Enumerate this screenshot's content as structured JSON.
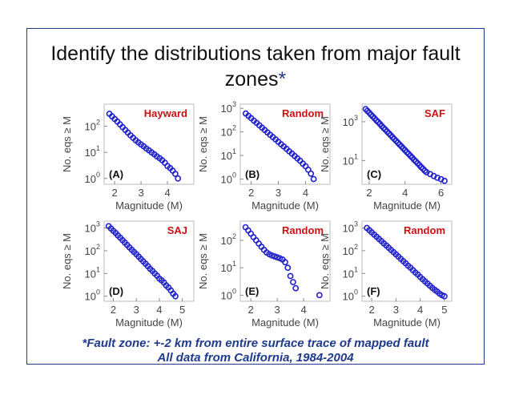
{
  "slide": {
    "title_main": "Identify the distributions taken from major fault zones",
    "title_asterisk": "*",
    "footnote_line1": "*Fault zone: +-2 km from entire surface trace of mapped fault",
    "footnote_line2": "All data from California, 1984-2004",
    "colors": {
      "frame": "#1f3a8c",
      "points": "#2222cc",
      "label_red": "#cc1111",
      "footnote": "#1f3a8c"
    }
  },
  "chart_data": [
    {
      "type": "scatter",
      "panel_label": "(A)",
      "annotation": "Hayward",
      "xlabel": "Magnitude (M)",
      "ylabel": "No. eqs ≥ M",
      "xlim": [
        1.6,
        5.0
      ],
      "xticks": [
        2,
        3,
        4
      ],
      "ylog": true,
      "ylim": [
        0.6,
        700
      ],
      "yticks": [
        1,
        10,
        100
      ],
      "ytick_labels": [
        [
          "10",
          "0"
        ],
        [
          "10",
          "1"
        ],
        [
          "10",
          "2"
        ]
      ],
      "x": [
        1.8,
        1.9,
        2.0,
        2.1,
        2.2,
        2.3,
        2.4,
        2.5,
        2.6,
        2.7,
        2.8,
        2.9,
        3.0,
        3.1,
        3.2,
        3.3,
        3.4,
        3.5,
        3.6,
        3.7,
        3.8,
        3.9,
        4.0,
        4.1,
        4.2,
        4.3,
        4.4
      ],
      "y": [
        300,
        240,
        190,
        150,
        118,
        92,
        72,
        57,
        45,
        36,
        29,
        24,
        20,
        17,
        14,
        12,
        10,
        8.5,
        7,
        6,
        5,
        4,
        3,
        2.5,
        2,
        1.5,
        1
      ]
    },
    {
      "type": "scatter",
      "panel_label": "(B)",
      "annotation": "Random",
      "xlabel": "Magnitude (M)",
      "ylabel": "No. eqs ≥ M",
      "xlim": [
        1.6,
        4.9
      ],
      "xticks": [
        2,
        3,
        4
      ],
      "ylog": true,
      "ylim": [
        0.6,
        1500
      ],
      "yticks": [
        1,
        10,
        100,
        1000
      ],
      "ytick_labels": [
        [
          "10",
          "0"
        ],
        [
          "10",
          "1"
        ],
        [
          "10",
          "2"
        ],
        [
          "10",
          "3"
        ]
      ],
      "x": [
        1.8,
        1.9,
        2.0,
        2.1,
        2.2,
        2.3,
        2.4,
        2.5,
        2.6,
        2.7,
        2.8,
        2.9,
        3.0,
        3.1,
        3.2,
        3.3,
        3.4,
        3.5,
        3.6,
        3.7,
        3.8,
        3.9,
        4.0,
        4.1,
        4.2,
        4.3
      ],
      "y": [
        600,
        480,
        380,
        300,
        240,
        190,
        150,
        120,
        95,
        75,
        60,
        48,
        38,
        30,
        24,
        19,
        15,
        12,
        9.5,
        7.5,
        6,
        4.5,
        3.5,
        2.5,
        1.7,
        1
      ]
    },
    {
      "type": "scatter",
      "panel_label": "(C)",
      "annotation": "SAF",
      "xlabel": "Magnitude (M)",
      "ylabel": "No. eqs ≥ M",
      "xlim": [
        1.6,
        6.6
      ],
      "xticks": [
        2,
        4,
        6
      ],
      "ylog": true,
      "ylim": [
        0.6,
        8000
      ],
      "yticks": [
        10,
        1000
      ],
      "ytick_labels": [
        [
          "10",
          "1"
        ],
        [
          "10",
          "3"
        ]
      ],
      "x": [
        1.8,
        1.9,
        2.0,
        2.1,
        2.2,
        2.3,
        2.4,
        2.5,
        2.6,
        2.7,
        2.8,
        2.9,
        3.0,
        3.1,
        3.2,
        3.3,
        3.4,
        3.5,
        3.6,
        3.7,
        3.8,
        3.9,
        4.0,
        4.1,
        4.2,
        4.3,
        4.4,
        4.5,
        4.6,
        4.7,
        4.8,
        4.9,
        5.0,
        5.1,
        5.2,
        5.4,
        5.6,
        5.8,
        6.0,
        6.2
      ],
      "y": [
        4500,
        3600,
        2900,
        2300,
        1850,
        1480,
        1180,
        950,
        760,
        600,
        480,
        390,
        310,
        250,
        200,
        160,
        128,
        102,
        82,
        66,
        53,
        42,
        34,
        27,
        22,
        17.5,
        14,
        11,
        9,
        7.2,
        5.8,
        4.6,
        3.7,
        3,
        2.5,
        2,
        1.6,
        1.3,
        1.1,
        0.9
      ]
    },
    {
      "type": "scatter",
      "panel_label": "(D)",
      "annotation": "SAJ",
      "xlabel": "Magnitude (M)",
      "ylabel": "No. eqs ≥ M",
      "xlim": [
        1.6,
        5.5
      ],
      "xticks": [
        2,
        3,
        4,
        5
      ],
      "ylog": true,
      "ylim": [
        0.6,
        2000
      ],
      "yticks": [
        1,
        10,
        100,
        1000
      ],
      "ytick_labels": [
        [
          "10",
          "0"
        ],
        [
          "10",
          "1"
        ],
        [
          "10",
          "2"
        ],
        [
          "10",
          "3"
        ]
      ],
      "x": [
        1.8,
        1.9,
        2.0,
        2.1,
        2.2,
        2.3,
        2.4,
        2.5,
        2.6,
        2.7,
        2.8,
        2.9,
        3.0,
        3.1,
        3.2,
        3.3,
        3.4,
        3.5,
        3.6,
        3.7,
        3.8,
        3.9,
        4.0,
        4.1,
        4.2,
        4.3,
        4.4,
        4.5,
        4.6,
        4.7
      ],
      "y": [
        1200,
        950,
        750,
        600,
        470,
        370,
        290,
        230,
        180,
        140,
        110,
        88,
        70,
        55,
        43,
        34,
        27,
        21,
        16,
        13,
        10,
        8,
        6,
        5,
        4,
        3,
        2.4,
        1.8,
        1.3,
        1
      ]
    },
    {
      "type": "scatter",
      "panel_label": "(E)",
      "annotation": "Random",
      "xlabel": "Magnitude (M)",
      "ylabel": "No. eqs ≥ M",
      "xlim": [
        1.6,
        5.0
      ],
      "xticks": [
        2,
        3,
        4
      ],
      "ylog": true,
      "ylim": [
        0.6,
        500
      ],
      "yticks": [
        1,
        10,
        100
      ],
      "ytick_labels": [
        [
          "10",
          "0"
        ],
        [
          "10",
          "1"
        ],
        [
          "10",
          "2"
        ]
      ],
      "x": [
        1.8,
        1.9,
        2.0,
        2.1,
        2.2,
        2.3,
        2.4,
        2.5,
        2.6,
        2.7,
        2.8,
        2.9,
        3.0,
        3.1,
        3.2,
        3.3,
        3.4,
        3.5,
        3.6,
        3.7,
        4.6
      ],
      "y": [
        300,
        230,
        175,
        130,
        100,
        76,
        58,
        45,
        36,
        31,
        28,
        26,
        24,
        22,
        20,
        16,
        10,
        5,
        3,
        1.8,
        1
      ]
    },
    {
      "type": "scatter",
      "panel_label": "(F)",
      "annotation": "Random",
      "xlabel": "Magnitude (M)",
      "ylabel": "No. eqs ≥ M",
      "xlim": [
        1.6,
        5.3
      ],
      "xticks": [
        2,
        3,
        4,
        5
      ],
      "ylog": true,
      "ylim": [
        0.6,
        2000
      ],
      "yticks": [
        1,
        10,
        100,
        1000
      ],
      "ytick_labels": [
        [
          "10",
          "0"
        ],
        [
          "10",
          "1"
        ],
        [
          "10",
          "2"
        ],
        [
          "10",
          "3"
        ]
      ],
      "x": [
        1.8,
        1.9,
        2.0,
        2.1,
        2.2,
        2.3,
        2.4,
        2.5,
        2.6,
        2.7,
        2.8,
        2.9,
        3.0,
        3.1,
        3.2,
        3.3,
        3.4,
        3.5,
        3.6,
        3.7,
        3.8,
        3.9,
        4.0,
        4.1,
        4.2,
        4.3,
        4.4,
        4.5,
        4.6,
        4.7,
        4.8,
        4.9,
        5.0
      ],
      "y": [
        1000,
        800,
        640,
        510,
        410,
        330,
        265,
        210,
        170,
        135,
        108,
        86,
        69,
        55,
        44,
        35,
        28,
        22,
        18,
        14,
        11,
        9,
        7,
        5.6,
        4.5,
        3.6,
        2.9,
        2.3,
        1.9,
        1.6,
        1.3,
        1.1,
        1
      ]
    }
  ]
}
